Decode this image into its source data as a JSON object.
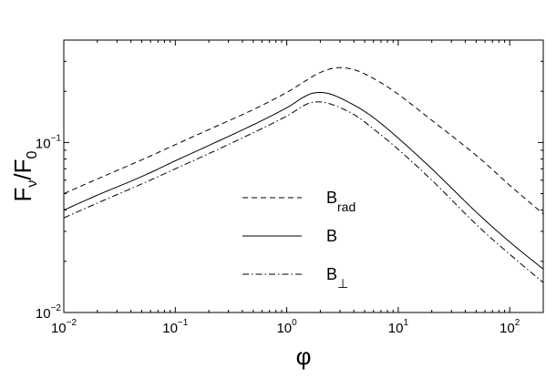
{
  "chart_data": {
    "type": "line",
    "x_scale": "log",
    "y_scale": "log",
    "xlim": [
      0.01,
      200
    ],
    "ylim": [
      0.01,
      0.4
    ],
    "xlabel": "φ",
    "ylabel": {
      "main": "F",
      "sub1": "ν",
      "mid": "/F",
      "sub2": "0"
    },
    "x_ticks": [
      {
        "value": 0.01,
        "base": "10",
        "exp": "−2"
      },
      {
        "value": 0.1,
        "base": "10",
        "exp": "−1"
      },
      {
        "value": 1,
        "base": "10",
        "exp": "0"
      },
      {
        "value": 10,
        "base": "10",
        "exp": "1"
      },
      {
        "value": 100,
        "base": "10",
        "exp": "2"
      }
    ],
    "y_ticks": [
      {
        "value": 0.01,
        "base": "10",
        "exp": "−2"
      },
      {
        "value": 0.1,
        "base": "10",
        "exp": "−1"
      }
    ],
    "grid": false,
    "legend_position": "center-left",
    "series": [
      {
        "name": "B_rad",
        "legend_main": "B",
        "legend_sub": "rad",
        "line_style": "dashed",
        "color": "#000000",
        "x": [
          0.01,
          0.02,
          0.05,
          0.1,
          0.2,
          0.5,
          1,
          1.5,
          2,
          2.8,
          4,
          6,
          10,
          20,
          50,
          100,
          200
        ],
        "y": [
          0.05,
          0.061,
          0.079,
          0.097,
          0.119,
          0.156,
          0.197,
          0.232,
          0.258,
          0.275,
          0.268,
          0.238,
          0.192,
          0.135,
          0.084,
          0.056,
          0.038
        ]
      },
      {
        "name": "B",
        "legend_main": "B",
        "legend_sub": "",
        "line_style": "solid",
        "color": "#000000",
        "x": [
          0.01,
          0.02,
          0.05,
          0.1,
          0.2,
          0.5,
          1,
          1.4,
          1.8,
          2.5,
          4,
          6,
          10,
          20,
          50,
          100,
          200
        ],
        "y": [
          0.04,
          0.049,
          0.063,
          0.078,
          0.096,
          0.127,
          0.16,
          0.184,
          0.196,
          0.192,
          0.166,
          0.14,
          0.106,
          0.07,
          0.039,
          0.026,
          0.018
        ]
      },
      {
        "name": "B_⊥",
        "legend_main": "B",
        "legend_sub": "⊥",
        "line_style": "dashdot",
        "color": "#000000",
        "x": [
          0.01,
          0.02,
          0.05,
          0.1,
          0.2,
          0.5,
          1,
          1.4,
          1.8,
          2.5,
          4,
          6,
          10,
          20,
          50,
          100,
          200
        ],
        "y": [
          0.036,
          0.044,
          0.057,
          0.07,
          0.086,
          0.114,
          0.143,
          0.164,
          0.173,
          0.168,
          0.146,
          0.12,
          0.091,
          0.06,
          0.033,
          0.022,
          0.015
        ]
      }
    ]
  }
}
